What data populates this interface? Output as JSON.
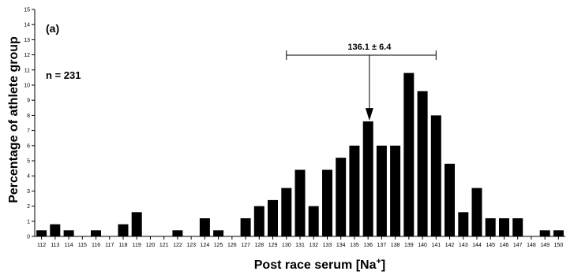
{
  "chart_data": {
    "type": "bar",
    "panel_label": "(a)",
    "n_label": "n = 231",
    "annotation": "136.1 ± 6.4",
    "ylabel": "Percentage of athlete group",
    "xlabel": "Post race serum [Na",
    "xlabel_sup": "+",
    "xlabel_end": "]",
    "ylim": [
      0,
      15
    ],
    "yticks": [
      "0",
      "1",
      "2",
      "3",
      "4",
      "5",
      "6",
      "7",
      "8",
      "9",
      "10",
      "11",
      "12",
      "13",
      "14",
      "15"
    ],
    "categories": [
      "112",
      "113",
      "114",
      "115",
      "116",
      "117",
      "118",
      "119",
      "120",
      "121",
      "122",
      "123",
      "124",
      "125",
      "126",
      "127",
      "128",
      "129",
      "130",
      "131",
      "132",
      "133",
      "134",
      "135",
      "136",
      "137",
      "138",
      "139",
      "140",
      "141",
      "142",
      "143",
      "144",
      "145",
      "146",
      "147",
      "148",
      "149",
      "150"
    ],
    "values": [
      0.4,
      0.8,
      0.4,
      0.0,
      0.4,
      0.0,
      0.8,
      1.6,
      0.0,
      0.0,
      0.4,
      0.0,
      1.2,
      0.4,
      0.0,
      1.2,
      2.0,
      2.4,
      3.2,
      4.4,
      2.0,
      4.4,
      5.2,
      6.0,
      7.6,
      6.0,
      6.0,
      10.8,
      9.6,
      8.0,
      4.8,
      1.6,
      3.2,
      1.2,
      1.2,
      1.2,
      0.0,
      0.4,
      0.4
    ],
    "mean": 136.1,
    "sd": 6.4,
    "grid": false,
    "bar_color": "#000000"
  }
}
